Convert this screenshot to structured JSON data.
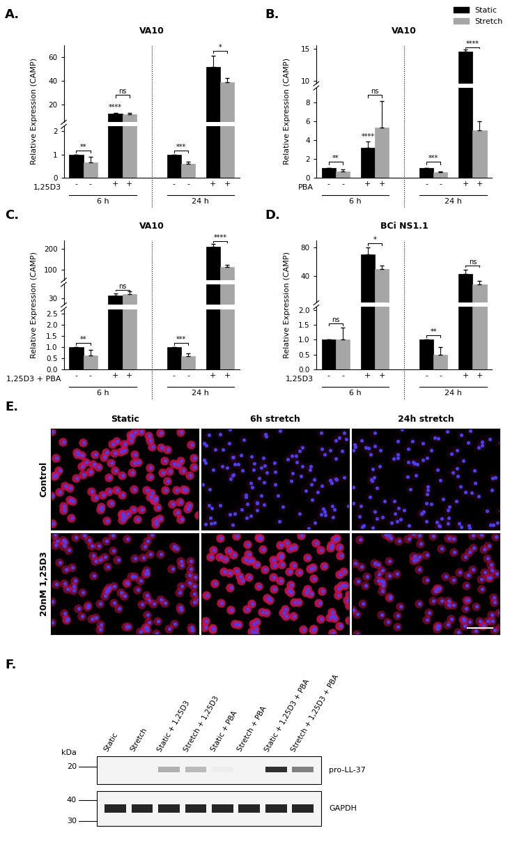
{
  "chart_data": [
    {
      "panel": "A.",
      "type": "bar",
      "title": "VA10",
      "ylabel": "Relative Expression (CAMP)",
      "treatment": "1,25D3",
      "groups": [
        "6 h",
        "24 h"
      ],
      "categories": [
        "-",
        "+",
        "-",
        "+"
      ],
      "series": [
        {
          "name": "Static",
          "color": "#000000",
          "values": [
            1,
            12.5,
            1,
            52
          ],
          "errors": [
            0,
            0.6,
            0,
            9
          ]
        },
        {
          "name": "Stretch",
          "color": "#a6a6a6",
          "values": [
            0.65,
            12,
            0.6,
            39
          ],
          "errors": [
            0.25,
            0.7,
            0.1,
            3.5
          ]
        }
      ],
      "axis_segments": [
        {
          "ylim": [
            0,
            2.2
          ],
          "yticks": [
            0,
            1,
            2
          ]
        },
        {
          "ylim": [
            5,
            70
          ],
          "yticks": [
            20,
            40,
            60
          ]
        }
      ],
      "comparisons": [
        "**",
        "ns",
        "***",
        "*"
      ],
      "marks": [
        null,
        "****",
        null,
        null
      ]
    },
    {
      "panel": "B.",
      "type": "bar",
      "title": "VA10",
      "ylabel": "Relative Expression (CAMP)",
      "treatment": "PBA",
      "groups": [
        "6 h",
        "24 h"
      ],
      "categories": [
        "-",
        "+",
        "-",
        "+"
      ],
      "series": [
        {
          "name": "Static",
          "color": "#000000",
          "values": [
            1,
            3.2,
            1,
            14.5
          ],
          "errors": [
            0,
            0.6,
            0,
            0.3
          ]
        },
        {
          "name": "Stretch",
          "color": "#a6a6a6",
          "values": [
            0.65,
            5.3,
            0.6,
            5
          ],
          "errors": [
            0.2,
            2.8,
            0.1,
            1
          ]
        }
      ],
      "axis_segments": [
        {
          "ylim": [
            0,
            9.5
          ],
          "yticks": [
            0,
            2,
            4,
            6,
            8
          ]
        },
        {
          "ylim": [
            9.5,
            15.5
          ],
          "yticks": [
            10,
            15
          ]
        }
      ],
      "comparisons": [
        "**",
        "ns",
        "***",
        "****"
      ],
      "marks": [
        null,
        "****",
        null,
        null
      ],
      "legend": "upper right"
    },
    {
      "panel": "C.",
      "type": "bar",
      "title": "VA10",
      "ylabel": "Relative Expression (CAMP)",
      "treatment": "1,25D3 + PBA",
      "groups": [
        "6 h",
        "24 h"
      ],
      "categories": [
        "-",
        "+",
        "-",
        "+"
      ],
      "series": [
        {
          "name": "Static",
          "color": "#000000",
          "values": [
            1,
            32,
            1,
            210
          ],
          "errors": [
            0,
            1.5,
            0,
            12
          ]
        },
        {
          "name": "Stretch",
          "color": "#a6a6a6",
          "values": [
            0.62,
            33,
            0.6,
            115
          ],
          "errors": [
            0.25,
            2,
            0.12,
            8
          ]
        }
      ],
      "axis_segments": [
        {
          "ylim": [
            0,
            2.7
          ],
          "yticks": [
            {
              "value": 0,
              "label": "0.0"
            },
            0.5,
            {
              "value": 1,
              "label": "1.0"
            },
            1.5,
            {
              "value": 2,
              "label": "2.0"
            },
            2.5
          ]
        },
        {
          "ylim": [
            25,
            40
          ],
          "yticks": [
            30
          ]
        },
        {
          "ylim": [
            50,
            240
          ],
          "yticks": [
            100,
            200
          ]
        }
      ],
      "comparisons": [
        "**",
        "ns",
        "***",
        "****"
      ],
      "marks": [
        null,
        null,
        null,
        null
      ]
    },
    {
      "panel": "D.",
      "type": "bar",
      "title": "BCi NS1.1",
      "ylabel": "Relative Expression (CAMP)",
      "treatment": "1,25D3",
      "groups": [
        "6 h",
        "24 h"
      ],
      "categories": [
        "-",
        "+",
        "-",
        "+"
      ],
      "series": [
        {
          "name": "Static",
          "color": "#000000",
          "values": [
            1,
            70,
            1,
            43
          ],
          "errors": [
            0,
            10,
            0,
            6
          ]
        },
        {
          "name": "Stretch",
          "color": "#a6a6a6",
          "values": [
            1.02,
            50,
            0.5,
            28
          ],
          "errors": [
            0.38,
            5,
            0.25,
            5
          ]
        }
      ],
      "axis_segments": [
        {
          "ylim": [
            0,
            2.1
          ],
          "yticks": [
            {
              "value": 0,
              "label": "0.0"
            },
            0.5,
            {
              "value": 1,
              "label": "1.0"
            },
            1.5,
            {
              "value": 2,
              "label": "2.0"
            }
          ]
        },
        {
          "ylim": [
            2.5,
            90
          ],
          "yticks": [
            40,
            80
          ]
        }
      ],
      "comparisons": [
        "ns",
        "*",
        "**",
        "ns"
      ],
      "marks": [
        null,
        null,
        null,
        null
      ]
    }
  ],
  "images": {
    "panel": "E.",
    "columns": [
      "Static",
      "6h stretch",
      "24h stretch"
    ],
    "rows": [
      "Control",
      "20nM 1,25D3"
    ],
    "red_staining": [
      [
        0.85,
        0.1,
        0.1
      ],
      [
        0.55,
        0.9,
        0.5
      ]
    ]
  },
  "blot": {
    "panel": "F.",
    "unit": "kDa",
    "ladder": [
      20,
      40,
      30
    ],
    "lanes": [
      "Static",
      "Stretch",
      "Static + 1,25D3",
      "Stretch + 1,25D3",
      "Static + PBA",
      "Stretch + PBA",
      "Static + 1,25D3 + PBA",
      "Stretch + 1,25D3 + PBA"
    ],
    "proteins": [
      {
        "name": "pro-LL-37",
        "band_strength": [
          0.05,
          0.05,
          0.35,
          0.3,
          0.08,
          0.05,
          0.9,
          0.55
        ]
      },
      {
        "name": "GAPDH",
        "band_strength": [
          0.95,
          0.95,
          0.95,
          0.95,
          0.95,
          0.95,
          0.95,
          0.95
        ]
      }
    ]
  }
}
